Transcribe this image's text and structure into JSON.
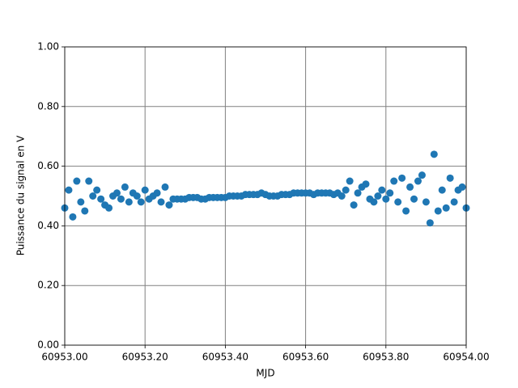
{
  "chart_data": {
    "type": "scatter",
    "xlabel": "MJD",
    "ylabel": "Puissance du signal en V",
    "color": "#1f77b4",
    "grid": true,
    "xlim": [
      60953,
      60954
    ],
    "xticks": [
      {
        "value": 60953,
        "label": "60953.00"
      },
      {
        "value": 60953.2,
        "label": "60953.20"
      },
      {
        "value": 60953.4,
        "label": "60953.40"
      },
      {
        "value": 60953.6,
        "label": "60953.60"
      },
      {
        "value": 60953.8,
        "label": "60953.80"
      },
      {
        "value": 60954,
        "label": "60954.00"
      }
    ],
    "ylim": [
      0,
      1
    ],
    "yticks": [
      {
        "value": 0,
        "label": "0.00"
      },
      {
        "value": 0.2,
        "label": "0.20"
      },
      {
        "value": 0.4,
        "label": "0.40"
      },
      {
        "value": 0.6,
        "label": "0.60"
      },
      {
        "value": 0.8,
        "label": "0.80"
      },
      {
        "value": 1,
        "label": "1.00"
      }
    ],
    "x": [
      60953,
      60953.01,
      60953.02,
      60953.03,
      60953.04,
      60953.05,
      60953.06,
      60953.07,
      60953.08,
      60953.09,
      60953.1,
      60953.11,
      60953.12,
      60953.13,
      60953.14,
      60953.15,
      60953.16,
      60953.17,
      60953.18,
      60953.19,
      60953.2,
      60953.21,
      60953.22,
      60953.23,
      60953.24,
      60953.25,
      60953.26,
      60953.27,
      60953.28,
      60953.29,
      60953.3,
      60953.31,
      60953.32,
      60953.33,
      60953.34,
      60953.35,
      60953.36,
      60953.37,
      60953.38,
      60953.39,
      60953.4,
      60953.41,
      60953.42,
      60953.43,
      60953.44,
      60953.45,
      60953.46,
      60953.47,
      60953.48,
      60953.49,
      60953.5,
      60953.51,
      60953.52,
      60953.53,
      60953.54,
      60953.55,
      60953.56,
      60953.57,
      60953.58,
      60953.59,
      60953.6,
      60953.61,
      60953.62,
      60953.63,
      60953.64,
      60953.65,
      60953.66,
      60953.67,
      60953.68,
      60953.69,
      60953.7,
      60953.71,
      60953.72,
      60953.73,
      60953.74,
      60953.75,
      60953.76,
      60953.77,
      60953.78,
      60953.79,
      60953.8,
      60953.81,
      60953.82,
      60953.83,
      60953.84,
      60953.85,
      60953.86,
      60953.87,
      60953.88,
      60953.89,
      60953.9,
      60953.91,
      60953.92,
      60953.93,
      60953.94,
      60953.95,
      60953.96,
      60953.97,
      60953.98,
      60953.99,
      60954
    ],
    "values": [
      0.46,
      0.52,
      0.43,
      0.55,
      0.48,
      0.45,
      0.55,
      0.5,
      0.52,
      0.49,
      0.47,
      0.46,
      0.5,
      0.51,
      0.49,
      0.53,
      0.48,
      0.51,
      0.5,
      0.48,
      0.52,
      0.49,
      0.5,
      0.51,
      0.48,
      0.53,
      0.47,
      0.49,
      0.49,
      0.49,
      0.49,
      0.495,
      0.495,
      0.495,
      0.49,
      0.49,
      0.495,
      0.495,
      0.495,
      0.495,
      0.495,
      0.5,
      0.5,
      0.5,
      0.5,
      0.505,
      0.505,
      0.505,
      0.505,
      0.51,
      0.505,
      0.5,
      0.5,
      0.5,
      0.505,
      0.505,
      0.505,
      0.51,
      0.51,
      0.51,
      0.51,
      0.51,
      0.505,
      0.51,
      0.51,
      0.51,
      0.51,
      0.505,
      0.51,
      0.5,
      0.52,
      0.55,
      0.47,
      0.51,
      0.53,
      0.54,
      0.49,
      0.48,
      0.5,
      0.52,
      0.49,
      0.51,
      0.55,
      0.48,
      0.56,
      0.45,
      0.53,
      0.49,
      0.55,
      0.57,
      0.48,
      0.41,
      0.64,
      0.45,
      0.52,
      0.46,
      0.56,
      0.48,
      0.52,
      0.53,
      0.46
    ]
  }
}
